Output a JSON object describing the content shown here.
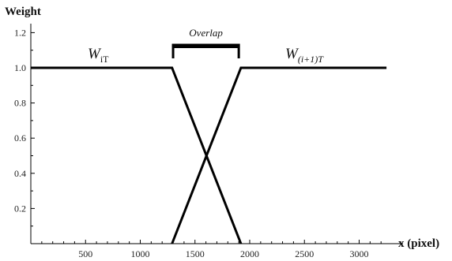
{
  "chart_data": {
    "type": "line",
    "ylabel": "Weight",
    "xlabel": "x (pixel)",
    "xlim": [
      0,
      3250
    ],
    "ylim": [
      0,
      1.25
    ],
    "x_ticks": [
      500,
      1000,
      1500,
      2000,
      2500,
      3000
    ],
    "x_tick_labels": [
      "500",
      "1000",
      "1500",
      "2000",
      "2500",
      "3000"
    ],
    "y_ticks": [
      0.2,
      0.4,
      0.6,
      0.8,
      1.0,
      1.2
    ],
    "y_tick_labels": [
      "0.2",
      "0.4",
      "0.6",
      "0.8",
      "1.0",
      "1.2"
    ],
    "grid": false,
    "series": [
      {
        "name_main": "W",
        "name_sub": "iT",
        "color": "#000000",
        "x": [
          0,
          1290,
          1920
        ],
        "y": [
          1.0,
          1.0,
          0.0
        ]
      },
      {
        "name_main": "W",
        "name_sub": "(i+1)T",
        "color": "#000000",
        "x": [
          1290,
          1920,
          3250
        ],
        "y": [
          0.0,
          1.0,
          1.0
        ]
      }
    ],
    "annotation": {
      "text": "Overlap",
      "x_start": 1300,
      "x_end": 1900
    }
  }
}
